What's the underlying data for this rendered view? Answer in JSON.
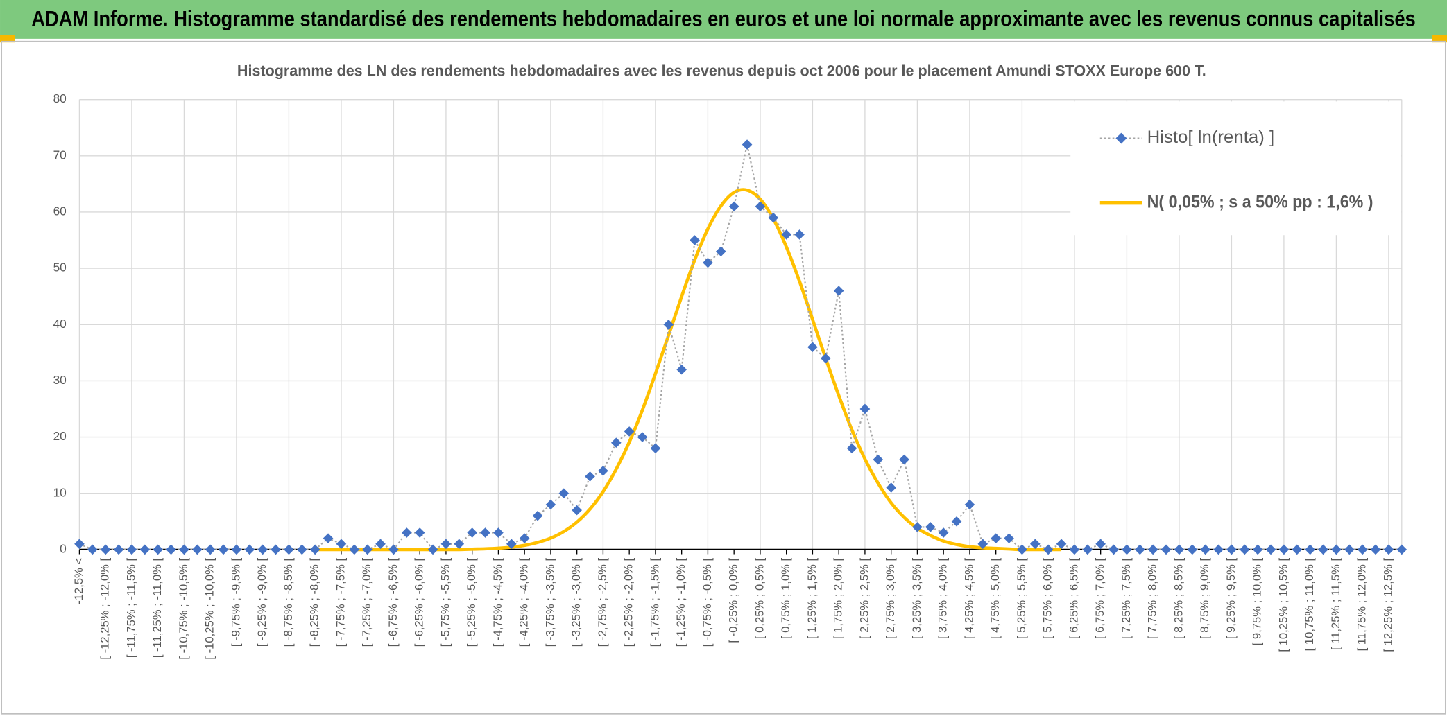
{
  "header": {
    "title": "ADAM Informe. Histogramme standardisé des rendements hebdomadaires en euros et une loi normale approximante avec les revenus connus capitalisés"
  },
  "chart_data": {
    "type": "line",
    "title": "Histogramme des LN des rendements hebdomadaires avec les revenus depuis oct 2006 pour le placement Amundi STOXX Europe 600 T.",
    "categories": [
      "-12,5% <",
      null,
      "[ -12,25% ; -12,0% [",
      null,
      "[ -11,75% ; -11,5% [",
      null,
      "[ -11,25% ; -11,0% [",
      null,
      "[ -10,75% ; -10,5% [",
      null,
      "[ -10,25% ; -10,0% [",
      null,
      "[ -9,75% ; -9,5% [",
      null,
      "[ -9,25% ; -9,0% [",
      null,
      "[ -8,75% ; -8,5% [",
      null,
      "[ -8,25% ; -8,0% [",
      null,
      "[ -7,75% ; -7,5% [",
      null,
      "[ -7,25% ; -7,0% [",
      null,
      "[ -6,75% ; -6,5% [",
      null,
      "[ -6,25% ; -6,0% [",
      null,
      "[ -5,75% ; -5,5% [",
      null,
      "[ -5,25% ; -5,0% [",
      null,
      "[ -4,75% ; -4,5% [",
      null,
      "[ -4,25% ; -4,0% [",
      null,
      "[ -3,75% ; -3,5% [",
      null,
      "[ -3,25% ; -3,0% [",
      null,
      "[ -2,75% ; -2,5% [",
      null,
      "[ -2,25% ; -2,0% [",
      null,
      "[ -1,75% ; -1,5% [",
      null,
      "[ -1,25% ; -1,0% [",
      null,
      "[ -0,75% ; -0,5% [",
      null,
      "[ -0,25% ; 0,0% [",
      null,
      "[ 0,25% ; 0,5% [",
      null,
      "[ 0,75% ; 1,0% [",
      null,
      "[ 1,25% ; 1,5% [",
      null,
      "[ 1,75% ; 2,0% [",
      null,
      "[ 2,25% ; 2,5% [",
      null,
      "[ 2,75% ; 3,0% [",
      null,
      "[ 3,25% ; 3,5% [",
      null,
      "[ 3,75% ; 4,0% [",
      null,
      "[ 4,25% ; 4,5% [",
      null,
      "[ 4,75% ; 5,0% [",
      null,
      "[ 5,25% ; 5,5% [",
      null,
      "[ 5,75% ; 6,0% [",
      null,
      "[ 6,25% ; 6,5% [",
      null,
      "[ 6,75% ; 7,0% [",
      null,
      "[ 7,25% ; 7,5% [",
      null,
      "[ 7,75% ; 8,0% [",
      null,
      "[ 8,25% ; 8,5% [",
      null,
      "[ 8,75% ; 9,0% [",
      null,
      "[ 9,25% ; 9,5% [",
      null,
      "[ 9,75% ; 10,0% [",
      null,
      "[ 10,25% ; 10,5% [",
      null,
      "[ 10,75% ; 11,0% [",
      null,
      "[ 11,25% ; 11,5% [",
      null,
      "[ 11,75% ; 12,0% [",
      null,
      "[ 12,25% ; 12,5% [",
      null
    ],
    "series": [
      {
        "name": "Histo[ ln(renta) ]",
        "color": "#4472c4",
        "line_color": "#a5a5a5",
        "line_style": "dotted",
        "marker": "diamond",
        "values": [
          1,
          0,
          0,
          0,
          0,
          0,
          0,
          0,
          0,
          0,
          0,
          0,
          0,
          0,
          0,
          0,
          0,
          0,
          0,
          2,
          1,
          0,
          0,
          1,
          0,
          3,
          3,
          0,
          1,
          1,
          3,
          3,
          3,
          1,
          2,
          6,
          8,
          10,
          7,
          13,
          14,
          19,
          21,
          20,
          18,
          40,
          32,
          55,
          51,
          53,
          61,
          72,
          61,
          59,
          56,
          56,
          36,
          34,
          46,
          18,
          25,
          16,
          11,
          16,
          4,
          4,
          3,
          5,
          8,
          1,
          2,
          2,
          0,
          1,
          0,
          1,
          0,
          0,
          1,
          0,
          0,
          0,
          0,
          0,
          0,
          0,
          0,
          0,
          0,
          0,
          0,
          0,
          0,
          0,
          0,
          0,
          0,
          0,
          0,
          0,
          0,
          0
        ]
      },
      {
        "name": "N( 0,05% ; s a 50% pp : 1,6% )",
        "color": "#ffc000",
        "line_style": "solid",
        "smooth": true,
        "values": [
          null,
          null,
          null,
          null,
          null,
          null,
          null,
          null,
          null,
          null,
          null,
          null,
          null,
          null,
          null,
          null,
          null,
          null,
          0,
          0,
          0,
          0,
          0,
          0,
          0,
          0,
          0,
          0,
          0,
          0,
          0.07,
          0.13,
          0.24,
          0.43,
          0.75,
          1.26,
          2.03,
          3.21,
          4.88,
          7.2,
          10.3,
          14.3,
          19.1,
          24.8,
          31.3,
          38.1,
          45,
          51.5,
          57,
          61.1,
          63.5,
          63.9,
          62.3,
          58.8,
          53.8,
          47.7,
          40.9,
          34,
          27.4,
          21.3,
          16.1,
          11.8,
          8.3,
          5.7,
          3.8,
          2.5,
          1.5,
          0.9,
          0.5,
          0.3,
          0.2,
          0.1,
          0,
          0,
          0,
          0,
          null,
          null,
          null,
          null,
          null,
          null,
          null,
          null,
          null,
          null,
          null,
          null,
          null,
          null,
          null,
          null,
          null,
          null,
          null,
          null,
          null,
          null,
          null,
          null,
          null,
          null
        ]
      }
    ],
    "ylim": [
      0,
      80
    ],
    "yticks": [
      0,
      10,
      20,
      30,
      40,
      50,
      60,
      70,
      80
    ],
    "grid": true,
    "legend": "top-right"
  }
}
